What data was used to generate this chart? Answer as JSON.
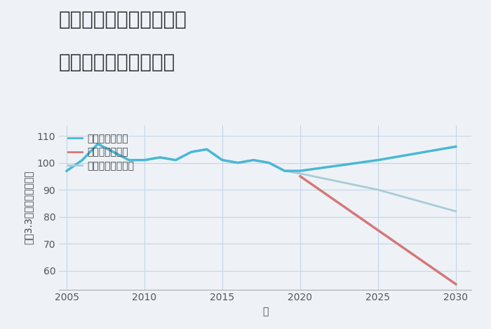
{
  "title_line1": "兵庫県姫路市南新在家の",
  "title_line2": "中古戸建ての価格推移",
  "xlabel": "年",
  "ylabel": "坪（3.3㎡）単価（万円）",
  "ylim": [
    53,
    114
  ],
  "xlim": [
    2004.5,
    2031
  ],
  "yticks": [
    60,
    70,
    80,
    90,
    100,
    110
  ],
  "xticks": [
    2005,
    2010,
    2015,
    2020,
    2025,
    2030
  ],
  "background_color": "#eef2f7",
  "plot_background": "#eef2f7",
  "grid_color": "#c5d5e5",
  "good_scenario": {
    "label": "グッドシナリオ",
    "color": "#4ab8d4",
    "linewidth": 2.5,
    "x": [
      2005,
      2006,
      2007,
      2008,
      2009,
      2010,
      2011,
      2012,
      2013,
      2014,
      2015,
      2016,
      2017,
      2018,
      2019,
      2020,
      2025,
      2030
    ],
    "y": [
      97,
      101,
      107,
      104,
      101,
      101,
      102,
      101,
      104,
      105,
      101,
      100,
      101,
      100,
      97,
      97,
      101,
      106
    ]
  },
  "bad_scenario": {
    "label": "バッドシナリオ",
    "color": "#d47878",
    "linewidth": 2.5,
    "x": [
      2020,
      2030
    ],
    "y": [
      95,
      55
    ]
  },
  "normal_scenario": {
    "label": "ノーマルシナリオ",
    "color": "#a8ccd8",
    "linewidth": 2.0,
    "x": [
      2005,
      2006,
      2007,
      2008,
      2009,
      2010,
      2011,
      2012,
      2013,
      2014,
      2015,
      2016,
      2017,
      2018,
      2019,
      2020,
      2025,
      2030
    ],
    "y": [
      97,
      101,
      107,
      104,
      101,
      101,
      102,
      101,
      104,
      105,
      101,
      100,
      101,
      100,
      97,
      96,
      90,
      82
    ]
  },
  "title_fontsize": 20,
  "label_fontsize": 10,
  "tick_fontsize": 10,
  "legend_fontsize": 10
}
